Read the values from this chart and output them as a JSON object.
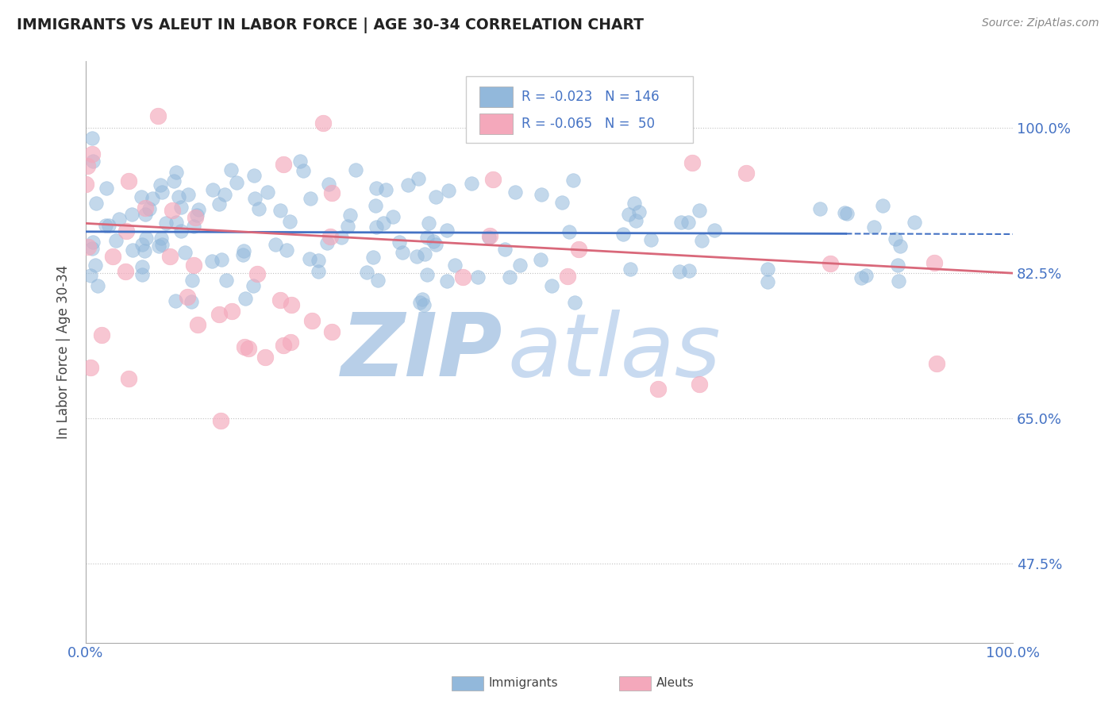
{
  "title": "IMMIGRANTS VS ALEUT IN LABOR FORCE | AGE 30-34 CORRELATION CHART",
  "source": "Source: ZipAtlas.com",
  "ylabel": "In Labor Force | Age 30-34",
  "xlim": [
    0.0,
    1.0
  ],
  "ylim": [
    0.38,
    1.08
  ],
  "yticks": [
    0.475,
    0.65,
    0.825,
    1.0
  ],
  "ytick_labels": [
    "47.5%",
    "65.0%",
    "82.5%",
    "100.0%"
  ],
  "xticks": [
    0.0,
    0.25,
    0.5,
    0.75,
    1.0
  ],
  "xtick_labels": [
    "0.0%",
    "",
    "",
    "",
    "100.0%"
  ],
  "immigrants_R": -0.023,
  "immigrants_N": 146,
  "aleuts_R": -0.065,
  "aleuts_N": 50,
  "immigrant_color": "#92b8db",
  "aleut_color": "#f4a8bb",
  "trend_immigrant_color": "#4472c4",
  "trend_aleut_color": "#d9687a",
  "background_color": "#ffffff",
  "watermark_zip": "ZIP",
  "watermark_atlas": "atlas",
  "watermark_color_zip": "#b8cfe8",
  "watermark_color_atlas": "#c8daf0",
  "seed_immigrants": 7,
  "seed_aleuts": 13,
  "imm_trend_start": 0.875,
  "imm_trend_end": 0.872,
  "ale_trend_start": 0.885,
  "ale_trend_end": 0.825
}
